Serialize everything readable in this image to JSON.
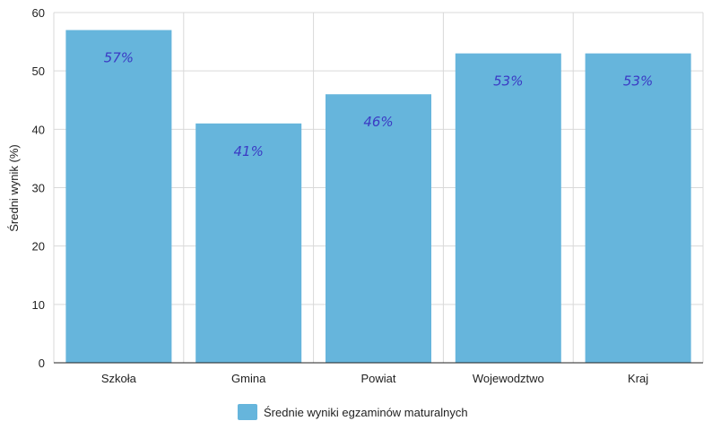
{
  "chart_data": {
    "type": "bar",
    "categories": [
      "Szkoła",
      "Gmina",
      "Powiat",
      "Wojewodztwo",
      "Kraj"
    ],
    "series": [
      {
        "name": "Średnie wyniki egzaminów maturalnych",
        "values": [
          57,
          41,
          46,
          53,
          53
        ],
        "data_labels": [
          "57%",
          "41%",
          "46%",
          "53%",
          "53%"
        ],
        "color": "#66b5dc"
      }
    ],
    "title": "",
    "xlabel": "",
    "ylabel": "Średni wynik (%)",
    "ylim": [
      0,
      60
    ],
    "yticks": [
      0,
      10,
      20,
      30,
      40,
      50,
      60
    ],
    "grid": true,
    "legend": "bottom-center",
    "colors": {
      "bar": "#66b5dc",
      "data_label": "#3b3bc4",
      "grid": "#d9d9d9",
      "axis": "#222222"
    }
  }
}
